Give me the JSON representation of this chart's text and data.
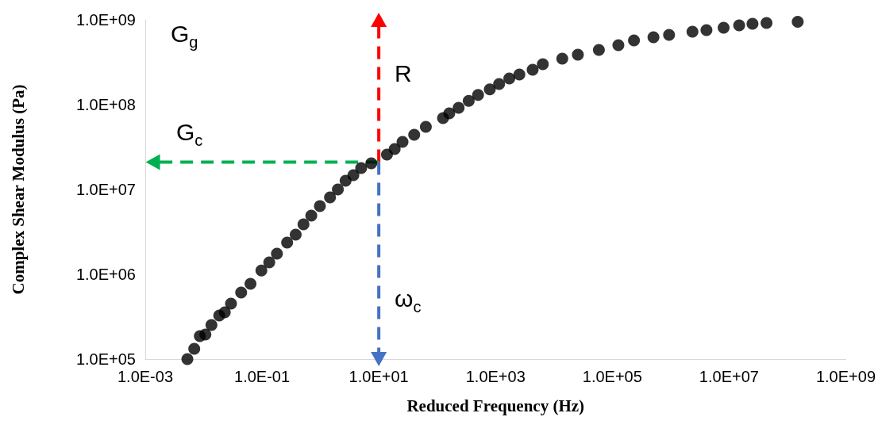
{
  "chart_data": {
    "type": "scatter",
    "xlabel": "Reduced Frequency (Hz)",
    "ylabel": "Complex Shear Modulus (Pa)",
    "log": "xy",
    "grid": false,
    "marker": "circle",
    "xlim": [
      0.001,
      1000000000
    ],
    "ylim": [
      100000,
      1000000000
    ],
    "xticks": [
      {
        "value": 0.001,
        "label": "1.0E-03"
      },
      {
        "value": 0.1,
        "label": "1.0E-01"
      },
      {
        "value": 10,
        "label": "1.0E+01"
      },
      {
        "value": 1000,
        "label": "1.0E+03"
      },
      {
        "value": 100000,
        "label": "1.0E+05"
      },
      {
        "value": 10000000,
        "label": "1.0E+07"
      },
      {
        "value": 1000000000,
        "label": "1.0E+09"
      }
    ],
    "yticks": [
      {
        "value": 100000,
        "label": "1.0E+05"
      },
      {
        "value": 1000000,
        "label": "1.0E+06"
      },
      {
        "value": 10000000,
        "label": "1.0E+07"
      },
      {
        "value": 100000000,
        "label": "1.0E+08"
      },
      {
        "value": 1000000000,
        "label": "1.0E+09"
      }
    ],
    "series": [
      {
        "color": "#000000",
        "x": [
          0.00526,
          0.0069,
          0.0086,
          0.0107,
          0.0136,
          0.0185,
          0.023,
          0.0294,
          0.0439,
          0.0634,
          0.0975,
          0.133,
          0.18,
          0.269,
          0.377,
          0.513,
          0.698,
          0.98,
          1.46,
          1.99,
          2.7,
          3.67,
          4.99,
          7.44,
          13.8,
          18.7,
          25.5,
          40.4,
          64,
          126,
          161,
          233,
          347,
          502,
          797,
          1150,
          1720,
          2560,
          4320,
          6450,
          13900,
          25700,
          58900,
          127000,
          235000,
          507000,
          938000,
          2360000,
          4100000,
          8070000,
          14900000,
          25200000,
          43800000,
          150000000
        ],
        "values": [
          100000,
          132000,
          187000,
          195000,
          252000,
          327000,
          356000,
          451000,
          610000,
          772000,
          1110000,
          1380000,
          1750000,
          2360000,
          2930000,
          3880000,
          4920000,
          6370000,
          8070000,
          10000000,
          12700000,
          14700000,
          17900000,
          20300000,
          25800000,
          30000000,
          36400000,
          44200000,
          54700000,
          69300000,
          78900000,
          91800000,
          111000000,
          130000000,
          151000000,
          175000000,
          203000000,
          226000000,
          258000000,
          300000000,
          349000000,
          388000000,
          442000000,
          502000000,
          572000000,
          623000000,
          664000000,
          724000000,
          757000000,
          807000000,
          861000000,
          898000000,
          918000000,
          950000000
        ]
      },
      {
        "type": "line",
        "color": "#ff0000",
        "line_style": "dashed",
        "marker": "triangle",
        "x": [
          10,
          10
        ],
        "values": [
          21000000,
          1000000000
        ]
      },
      {
        "type": "line",
        "color": "#00b050",
        "line_style": "dashed",
        "marker": "triangle",
        "x": [
          10,
          0.00135
        ],
        "values": [
          21000000,
          21000000
        ]
      },
      {
        "type": "line",
        "color": "#4472c4",
        "line_style": "dashed",
        "marker": "triangle",
        "x": [
          10,
          10
        ],
        "values": [
          21000000,
          100000
        ]
      }
    ],
    "annotations": [
      "G$_{g}$",
      "G$_{c}$",
      "R",
      "ω$_{c}$"
    ]
  }
}
